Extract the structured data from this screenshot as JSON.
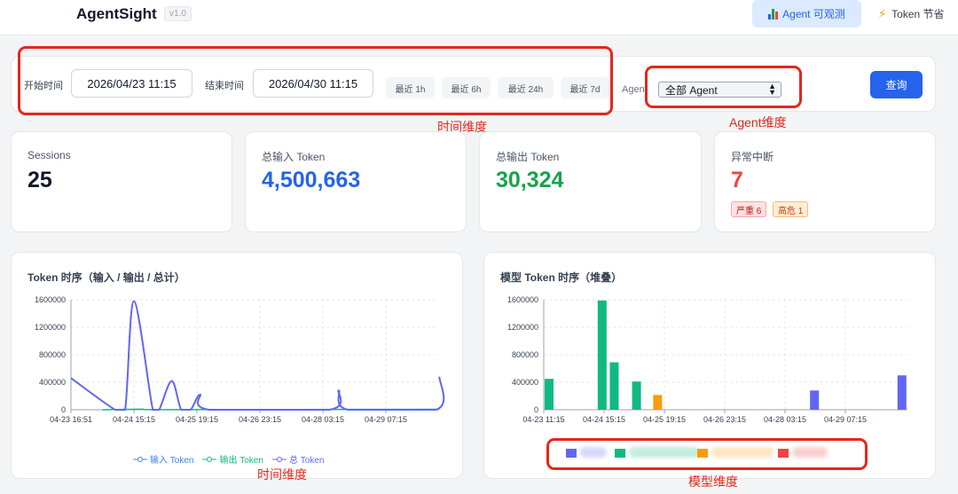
{
  "header": {
    "title": "AgentSight",
    "version": "v1.0",
    "nav": [
      {
        "label": "Agent 可观测",
        "active": true,
        "icon": "bar-chart-icon"
      },
      {
        "label": "Token 节省",
        "active": false,
        "icon": "lightning-icon"
      }
    ]
  },
  "filters": {
    "start_label": "开始时间",
    "start_value": "2026/04/23 11:15",
    "end_label": "结束时间",
    "end_value": "2026/04/30 11:15",
    "quick": [
      "最近 1h",
      "最近 6h",
      "最近 24h",
      "最近 7d"
    ],
    "agent_label": "Agent",
    "agent_value": "全部 Agent",
    "query_button": "查询"
  },
  "annotations": {
    "time": "时间维度",
    "agent": "Agent维度",
    "chart_time": "时间维度",
    "model": "模型维度",
    "color": "#e5261c"
  },
  "stats": [
    {
      "title": "Sessions",
      "value": "25",
      "color": "#111827"
    },
    {
      "title": "总输入 Token",
      "value": "4,500,663",
      "color": "#2563eb"
    },
    {
      "title": "总输出 Token",
      "value": "30,324",
      "color": "#16a34a"
    },
    {
      "title": "异常中断",
      "value": "7",
      "color": "#ef4444",
      "tags": [
        "严重 6",
        "高危 1"
      ]
    }
  ],
  "chart_data": [
    {
      "type": "line",
      "title": "Token 时序（输入 / 输出 / 总计）",
      "x": [
        "04-23 16:51",
        "04-24 15:15",
        "04-25 19:15",
        "04-26 23:15",
        "04-28 03:15",
        "04-29 07:15"
      ],
      "ylim": [
        0,
        1600000
      ],
      "yticks": [
        0,
        400000,
        800000,
        1200000,
        1600000
      ],
      "series": [
        {
          "name": "输入 Token",
          "color": "#3b82f6",
          "points": [
            [
              0,
              460000
            ],
            [
              0.7,
              0
            ],
            [
              0.86,
              0
            ],
            [
              1.0,
              1580000
            ],
            [
              1.3,
              0
            ],
            [
              1.4,
              0
            ],
            [
              1.6,
              420000
            ],
            [
              1.75,
              0
            ],
            [
              1.9,
              0
            ],
            [
              2.05,
              220000
            ],
            [
              2.2,
              0
            ],
            [
              4.1,
              0
            ],
            [
              4.25,
              280000
            ],
            [
              4.4,
              0
            ],
            [
              5.8,
              0
            ],
            [
              5.85,
              480000
            ]
          ]
        },
        {
          "name": "输出 Token",
          "color": "#10b981",
          "points": [
            [
              0.5,
              0
            ],
            [
              1.1,
              8000
            ],
            [
              1.6,
              2000
            ],
            [
              5.85,
              6000
            ]
          ]
        },
        {
          "name": "总 Token",
          "color": "#6366f1",
          "points": [
            [
              0,
              460000
            ],
            [
              0.7,
              0
            ],
            [
              0.86,
              0
            ],
            [
              1.0,
              1580000
            ],
            [
              1.3,
              0
            ],
            [
              1.4,
              0
            ],
            [
              1.6,
              420000
            ],
            [
              1.75,
              0
            ],
            [
              1.9,
              0
            ],
            [
              2.05,
              220000
            ],
            [
              2.2,
              0
            ],
            [
              4.1,
              0
            ],
            [
              4.25,
              280000
            ],
            [
              4.4,
              0
            ],
            [
              5.8,
              0
            ],
            [
              5.85,
              480000
            ]
          ]
        }
      ]
    },
    {
      "type": "bar",
      "title": "模型 Token 时序（堆叠）",
      "x": [
        "04-23 11:15",
        "04-24 15:15",
        "04-25 19:15",
        "04-26 23:15",
        "04-28 03:15",
        "04-29 07:15"
      ],
      "ylim": [
        0,
        1600000
      ],
      "yticks": [
        0,
        400000,
        800000,
        1200000,
        1600000
      ],
      "bars": [
        {
          "x": 0,
          "value": 450000,
          "color": "#10b981"
        },
        {
          "x": 0.88,
          "value": 1590000,
          "color": "#10b981"
        },
        {
          "x": 1.08,
          "value": 690000,
          "color": "#10b981"
        },
        {
          "x": 1.45,
          "value": 410000,
          "color": "#10b981"
        },
        {
          "x": 1.8,
          "value": 215000,
          "color": "#f59e0b"
        },
        {
          "x": 4.4,
          "value": 280000,
          "color": "#6366f1"
        },
        {
          "x": 5.85,
          "value": 500000,
          "color": "#6366f1"
        }
      ],
      "legend_colors": [
        "#6366f1",
        "#10b981",
        "#f59e0b",
        "#ef4444"
      ]
    }
  ]
}
